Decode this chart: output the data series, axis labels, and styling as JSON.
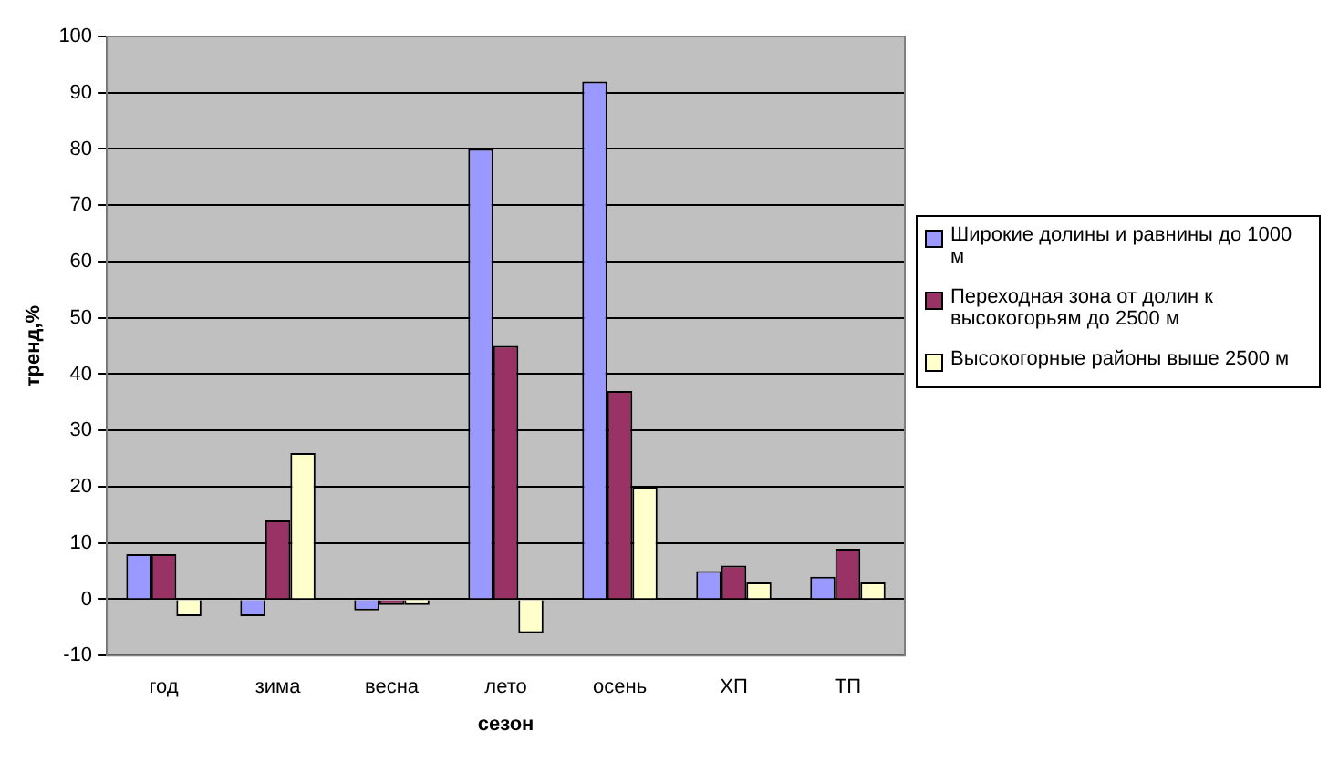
{
  "chart_data": {
    "type": "bar",
    "xlabel": "сезон",
    "ylabel": "тренд,%",
    "categories": [
      "год",
      "зима",
      "весна",
      "лето",
      "осень",
      "ХП",
      "ТП"
    ],
    "series": [
      {
        "name": "Широкие долины и равнины до 1000 м",
        "color": "#9999ff",
        "values": [
          8,
          -3,
          -2,
          80,
          92,
          5,
          4
        ]
      },
      {
        "name": "Переходная зона от долин к высокогорьям до 2500 м",
        "color": "#993366",
        "values": [
          8,
          14,
          -1,
          45,
          37,
          6,
          9
        ]
      },
      {
        "name": "Высокогорные районы выше 2500 м",
        "color": "#ffffcc",
        "values": [
          -3,
          26,
          -1,
          -6,
          20,
          3,
          3
        ]
      }
    ],
    "ylim": [
      -10,
      100
    ],
    "yticks": [
      -10,
      0,
      10,
      20,
      30,
      40,
      50,
      60,
      70,
      80,
      90,
      100
    ],
    "grid": "y",
    "legend": "right"
  }
}
